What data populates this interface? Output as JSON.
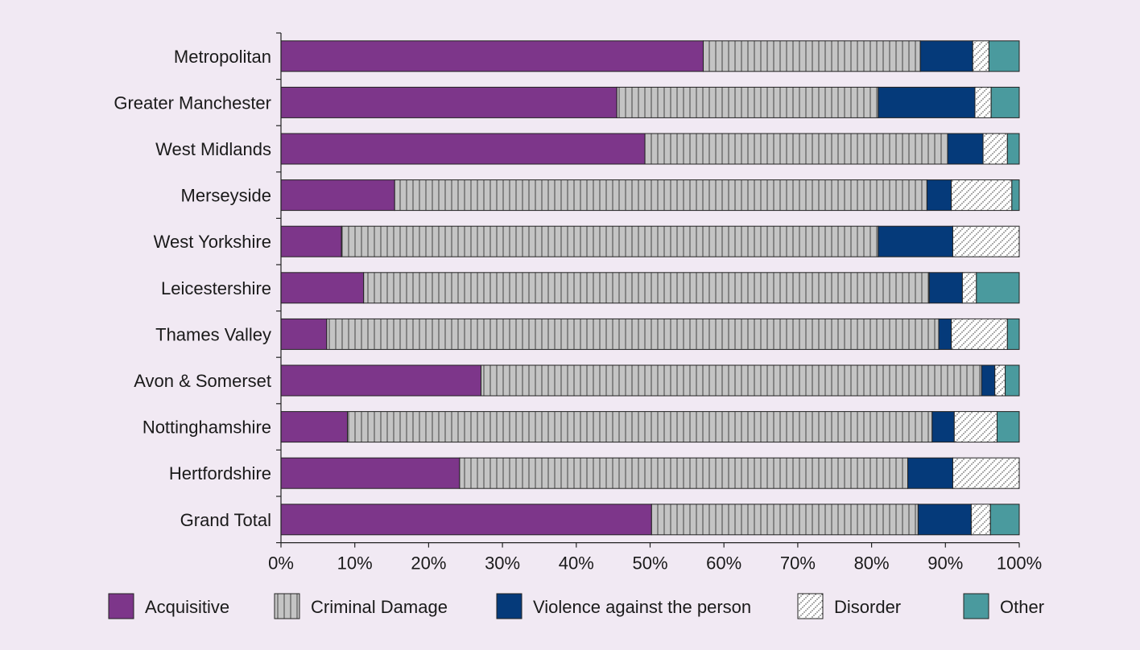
{
  "chart_data": {
    "type": "bar",
    "orientation": "horizontal",
    "stacked": "percent",
    "categories": [
      "Metropolitan",
      "Greater Manchester",
      "West Midlands",
      "Merseyside",
      "West Yorkshire",
      "Leicestershire",
      "Thames Valley",
      "Avon & Somerset",
      "Nottinghamshire",
      "Hertfordshire",
      "Grand Total"
    ],
    "series": [
      {
        "name": "Acquisitive",
        "color": "#7d368a",
        "pattern": "solid",
        "values": [
          57.2,
          45.5,
          49.3,
          15.4,
          8.2,
          11.2,
          6.2,
          27.1,
          9.0,
          24.2,
          50.2
        ]
      },
      {
        "name": "Criminal Damage",
        "color": "#bfbfbf",
        "pattern": "vertical-lines",
        "values": [
          29.4,
          35.4,
          41.0,
          72.1,
          72.7,
          76.6,
          82.9,
          67.8,
          79.2,
          60.7,
          36.1
        ]
      },
      {
        "name": "Violence against the person",
        "color": "#053a7a",
        "pattern": "solid",
        "values": [
          7.1,
          13.1,
          4.8,
          3.3,
          10.1,
          4.5,
          1.7,
          1.8,
          3.0,
          6.1,
          7.2
        ]
      },
      {
        "name": "Disorder",
        "color": "#ffffff",
        "pattern": "diagonal-dots",
        "values": [
          2.2,
          2.2,
          3.3,
          8.2,
          9.0,
          1.9,
          7.6,
          1.4,
          5.8,
          9.0,
          2.6
        ]
      },
      {
        "name": "Other",
        "color": "#4a9a9e",
        "pattern": "solid",
        "values": [
          4.1,
          3.8,
          1.6,
          1.0,
          0.0,
          5.8,
          1.6,
          1.9,
          3.0,
          0.0,
          3.9
        ]
      }
    ],
    "xlim": [
      0,
      100
    ],
    "x_ticks": [
      "0%",
      "10%",
      "20%",
      "30%",
      "40%",
      "50%",
      "60%",
      "70%",
      "80%",
      "90%",
      "100%"
    ],
    "title": "",
    "xlabel": "",
    "ylabel": "",
    "grid": false,
    "legend_position": "bottom"
  }
}
